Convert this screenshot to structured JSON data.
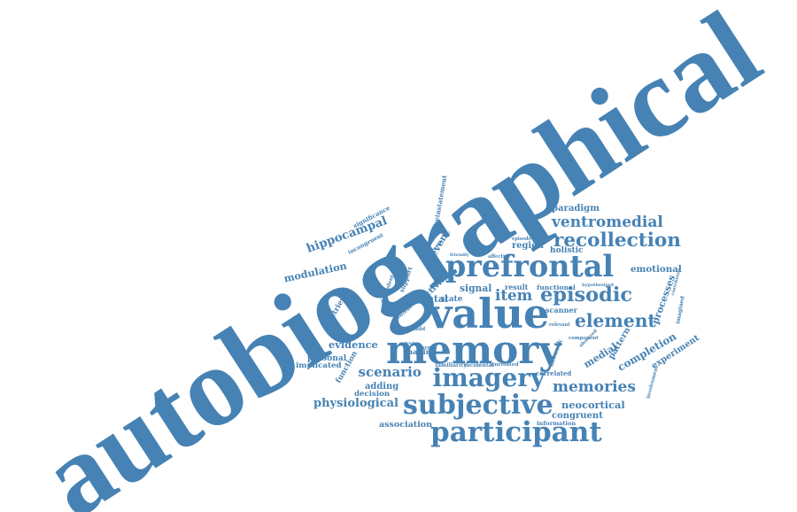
{
  "colors": {
    "text": "#4682b4",
    "background": "#ffffff"
  },
  "words": [
    "autobiographical",
    "memory",
    "value",
    "prefrontal",
    "participant",
    "subjective",
    "imagery",
    "episodic",
    "element",
    "item",
    "recollection",
    "memories",
    "hippocampal",
    "ventromedial",
    "scenario",
    "completion",
    "experiment",
    "evidence",
    "physiological",
    "medial",
    "processes",
    "neocortical",
    "modulation",
    "emotional",
    "paradigm",
    "mental",
    "function",
    "adding",
    "decision",
    "personal",
    "implicated",
    "association",
    "congruent",
    "region",
    "holistic",
    "signal",
    "activity",
    "event",
    "pattern",
    "retrieval",
    "making",
    "functional",
    "result",
    "state",
    "scanner",
    "information",
    "imagined",
    "correlated",
    "component",
    "network",
    "involvement",
    "reinstatement",
    "significance",
    "incongruent",
    "support",
    "dependent",
    "context",
    "familiarity",
    "incidental",
    "unrelated",
    "affective",
    "episode",
    "hypothesized",
    "contribution",
    "involved",
    "friendly",
    "pairwise",
    "relevant",
    "observed",
    "build",
    "oxygen"
  ]
}
